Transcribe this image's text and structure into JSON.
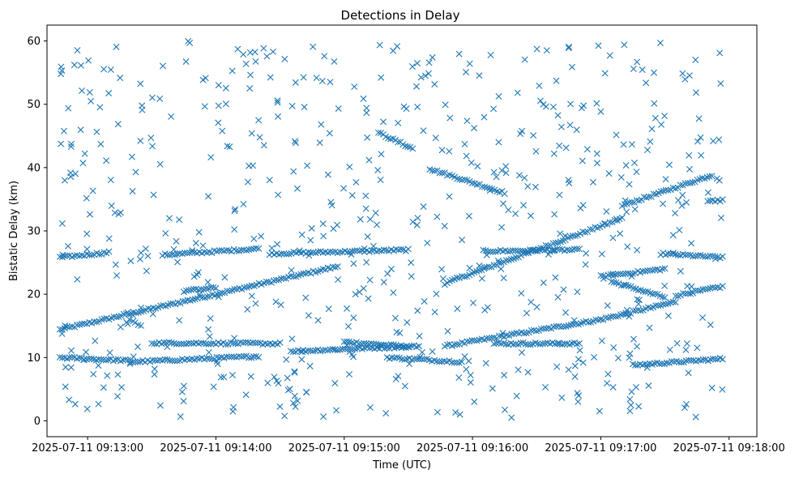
{
  "chart_data": {
    "type": "scatter",
    "title": "Detections in Delay",
    "xlabel": "Time (UTC)",
    "ylabel": "Bistatic Delay (km)",
    "marker": "x",
    "color": "#1f77b4",
    "grid": false,
    "legend": "none",
    "x_start": "2025-07-11 09:12:47",
    "x_end": "2025-07-11 09:17:57",
    "xlim": [
      "2025-07-11 09:12:41",
      "2025-07-11 09:18:13"
    ],
    "ylim": [
      -2.5,
      62.5
    ],
    "x_ticks": [
      "2025-07-11 09:13:00",
      "2025-07-11 09:14:00",
      "2025-07-11 09:15:00",
      "2025-07-11 09:16:00",
      "2025-07-11 09:17:00",
      "2025-07-11 09:18:00"
    ],
    "y_ticks": [
      "0",
      "10",
      "20",
      "30",
      "40",
      "50",
      "60"
    ],
    "tracks": [
      {
        "from": [
          "2025-07-11 09:12:47",
          14.4
        ],
        "to": [
          "2025-07-11 09:14:57",
          24.4
        ]
      },
      {
        "from": [
          "2025-07-11 09:15:47",
          21.7
        ],
        "to": [
          "2025-07-11 09:17:10",
          32.0
        ]
      },
      {
        "from": [
          "2025-07-11 09:15:00",
          12.5
        ],
        "to": [
          "2025-07-11 09:15:30",
          11.7
        ]
      },
      {
        "from": [
          "2025-07-11 09:15:47",
          11.8
        ],
        "to": [
          "2025-07-11 09:17:00",
          16.0
        ]
      },
      {
        "from": [
          "2025-07-11 09:17:00",
          16.0
        ],
        "to": [
          "2025-07-11 09:17:35",
          18.8
        ]
      },
      {
        "from": [
          "2025-07-11 09:17:35",
          19.8
        ],
        "to": [
          "2025-07-11 09:17:57",
          21.2
        ]
      },
      {
        "from": [
          "2025-07-11 09:17:10",
          34.0
        ],
        "to": [
          "2025-07-11 09:17:52",
          38.8
        ]
      },
      {
        "from": [
          "2025-07-11 09:15:40",
          39.8
        ],
        "to": [
          "2025-07-11 09:16:15",
          36.0
        ]
      },
      {
        "from": [
          "2025-07-11 09:15:16",
          45.5
        ],
        "to": [
          "2025-07-11 09:15:32",
          43.0
        ]
      },
      {
        "from": [
          "2025-07-11 09:17:05",
          22.0
        ],
        "to": [
          "2025-07-11 09:17:30",
          19.5
        ]
      },
      {
        "from": [
          "2025-07-11 09:12:47",
          25.8
        ],
        "to": [
          "2025-07-11 09:13:10",
          26.6
        ]
      },
      {
        "from": [
          "2025-07-11 09:13:35",
          26.2
        ],
        "to": [
          "2025-07-11 09:14:20",
          27.2
        ]
      },
      {
        "from": [
          "2025-07-11 09:14:25",
          26.4
        ],
        "to": [
          "2025-07-11 09:15:30",
          27.0
        ]
      },
      {
        "from": [
          "2025-07-11 09:16:05",
          26.8
        ],
        "to": [
          "2025-07-11 09:16:50",
          27.0
        ]
      },
      {
        "from": [
          "2025-07-11 09:17:28",
          26.4
        ],
        "to": [
          "2025-07-11 09:17:57",
          25.8
        ]
      },
      {
        "from": [
          "2025-07-11 09:12:47",
          10.0
        ],
        "to": [
          "2025-07-11 09:13:20",
          9.5
        ]
      },
      {
        "from": [
          "2025-07-11 09:13:20",
          9.3
        ],
        "to": [
          "2025-07-11 09:14:20",
          10.2
        ]
      },
      {
        "from": [
          "2025-07-11 09:14:35",
          11.0
        ],
        "to": [
          "2025-07-11 09:15:35",
          11.8
        ]
      },
      {
        "from": [
          "2025-07-11 09:15:20",
          10.0
        ],
        "to": [
          "2025-07-11 09:15:55",
          9.3
        ]
      },
      {
        "from": [
          "2025-07-11 09:16:10",
          12.2
        ],
        "to": [
          "2025-07-11 09:16:50",
          12.2
        ]
      },
      {
        "from": [
          "2025-07-11 09:17:15",
          8.8
        ],
        "to": [
          "2025-07-11 09:17:57",
          9.8
        ]
      },
      {
        "from": [
          "2025-07-11 09:13:30",
          12.3
        ],
        "to": [
          "2025-07-11 09:14:30",
          12.2
        ]
      },
      {
        "from": [
          "2025-07-11 09:13:45",
          20.5
        ],
        "to": [
          "2025-07-11 09:14:00",
          21.0
        ]
      },
      {
        "from": [
          "2025-07-11 09:17:50",
          34.8
        ],
        "to": [
          "2025-07-11 09:17:57",
          34.8
        ]
      },
      {
        "from": [
          "2025-07-11 09:17:00",
          22.8
        ],
        "to": [
          "2025-07-11 09:17:30",
          24.0
        ]
      }
    ],
    "noise_count": 620
  }
}
